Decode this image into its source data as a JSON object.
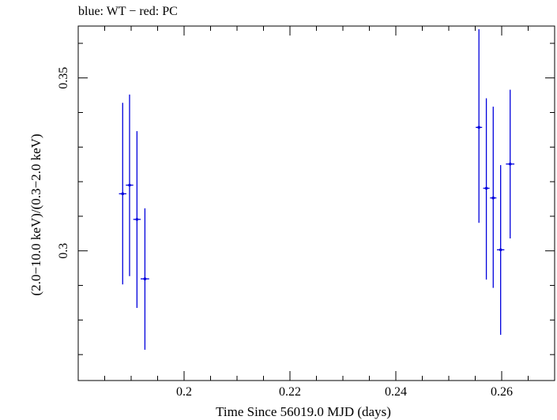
{
  "header": {
    "title": "blue: WT − red: PC"
  },
  "chart_data": {
    "type": "scatter",
    "title": "blue: WT − red: PC",
    "xlabel": "Time Since 56019.0 MJD (days)",
    "ylabel": "(2.0−10.0 keV)/(0.3−2.0 keV)",
    "xlim": [
      0.18,
      0.27
    ],
    "ylim": [
      0.2625,
      0.365
    ],
    "x_ticks": [
      {
        "value": 0.2,
        "label": "0.2"
      },
      {
        "value": 0.22,
        "label": "0.22"
      },
      {
        "value": 0.24,
        "label": "0.24"
      },
      {
        "value": 0.26,
        "label": "0.26"
      }
    ],
    "y_ticks": [
      {
        "value": 0.3,
        "label": "0.3"
      },
      {
        "value": 0.35,
        "label": "0.35"
      }
    ],
    "grid": false,
    "series": [
      {
        "color": "#0000dd",
        "points": [
          {
            "x": 0.1884,
            "xerr": 0.0007,
            "y": 0.3165,
            "ylo": 0.2903,
            "yhi": 0.3428
          },
          {
            "x": 0.1897,
            "xerr": 0.0007,
            "y": 0.319,
            "ylo": 0.2927,
            "yhi": 0.3452
          },
          {
            "x": 0.1911,
            "xerr": 0.0007,
            "y": 0.3091,
            "ylo": 0.2835,
            "yhi": 0.3346
          },
          {
            "x": 0.1926,
            "xerr": 0.0008,
            "y": 0.2919,
            "ylo": 0.2714,
            "yhi": 0.3123
          },
          {
            "x": 0.2557,
            "xerr": 0.0006,
            "y": 0.3357,
            "ylo": 0.3081,
            "yhi": 0.3641
          },
          {
            "x": 0.2571,
            "xerr": 0.0006,
            "y": 0.3181,
            "ylo": 0.2917,
            "yhi": 0.3441
          },
          {
            "x": 0.2584,
            "xerr": 0.0006,
            "y": 0.3153,
            "ylo": 0.2893,
            "yhi": 0.3417
          },
          {
            "x": 0.2598,
            "xerr": 0.0007,
            "y": 0.3003,
            "ylo": 0.2757,
            "yhi": 0.3248
          },
          {
            "x": 0.2616,
            "xerr": 0.0008,
            "y": 0.3251,
            "ylo": 0.3036,
            "yhi": 0.3466
          }
        ]
      }
    ]
  }
}
